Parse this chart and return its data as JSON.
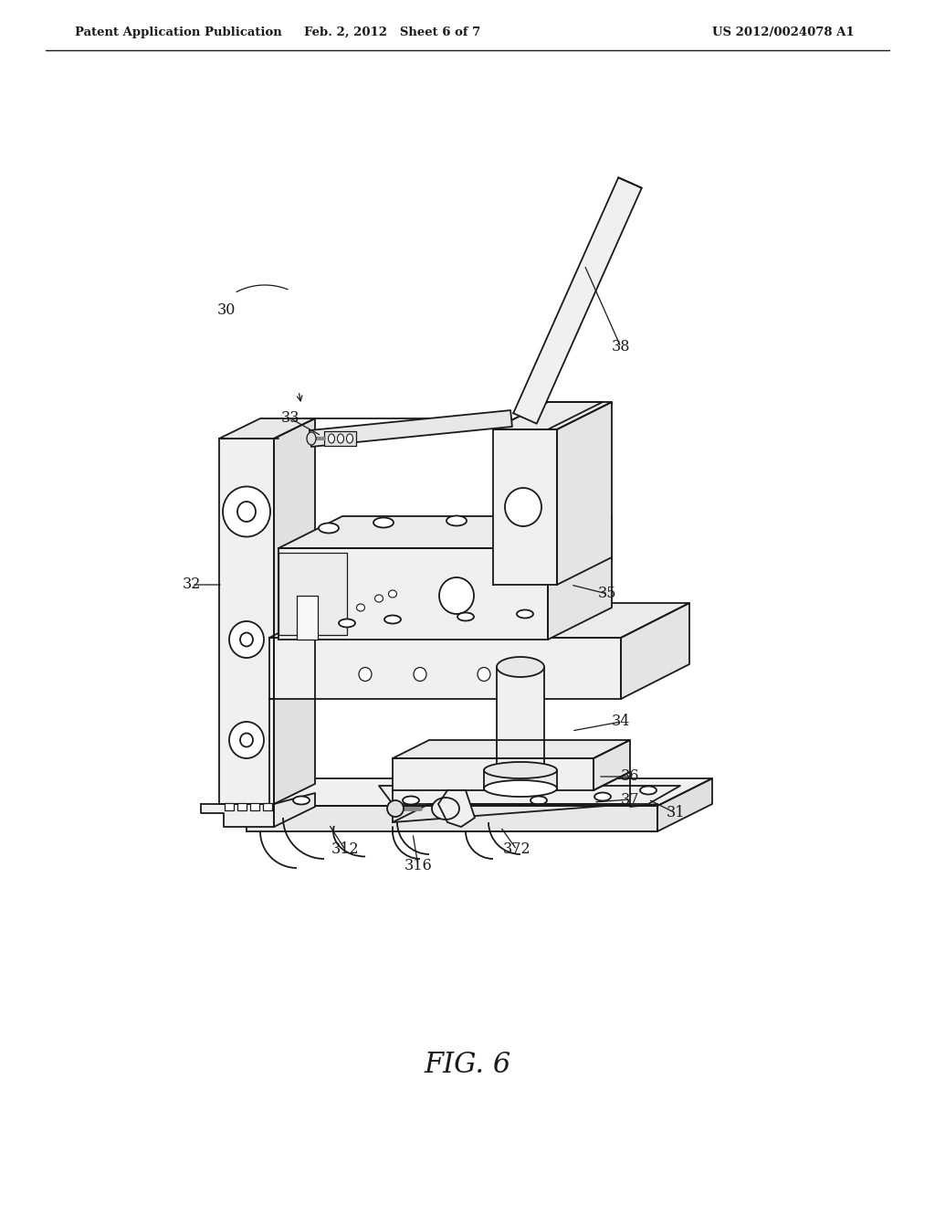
{
  "bg_color": "#ffffff",
  "lc": "#1a1a1a",
  "lw": 1.3,
  "header_left": "Patent Application Publication",
  "header_center": "Feb. 2, 2012   Sheet 6 of 7",
  "header_right": "US 2012/0024078 A1",
  "fig_caption": "FIG. 6",
  "label_fontsize": 11.5,
  "header_fontsize": 9.5,
  "caption_fontsize": 22
}
